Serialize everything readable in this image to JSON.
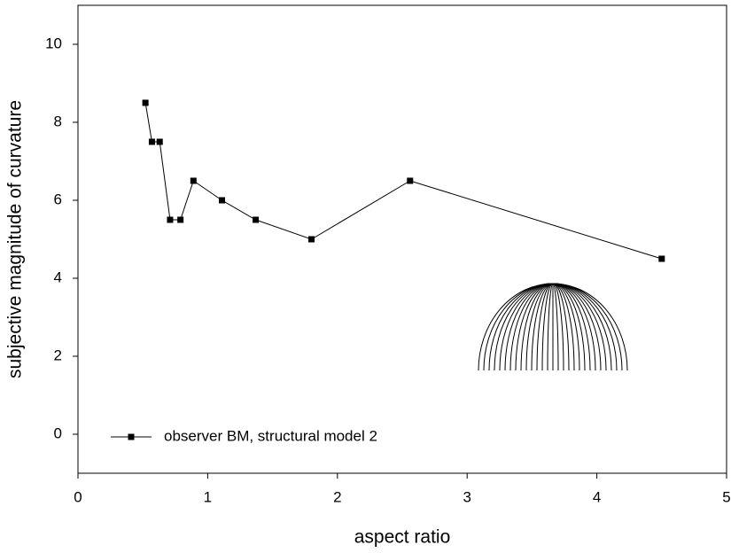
{
  "chart_data": {
    "type": "line",
    "xlabel": "aspect ratio",
    "ylabel": "subjective magnitude of curvature",
    "x": [
      0.52,
      0.57,
      0.63,
      0.71,
      0.79,
      0.89,
      1.11,
      1.37,
      1.8,
      2.56,
      4.5
    ],
    "series": [
      {
        "name": "observer BM, structural model 2",
        "color": "#000000",
        "values": [
          8.5,
          7.5,
          7.5,
          5.5,
          5.5,
          6.5,
          6.0,
          5.5,
          5.0,
          6.5,
          4.5
        ]
      }
    ],
    "xlim": [
      0,
      5
    ],
    "xticks": [
      0,
      1,
      2,
      3,
      4,
      5
    ],
    "ylim": [
      -1,
      11
    ],
    "yticks": [
      0,
      2,
      4,
      6,
      8,
      10
    ],
    "legend": "lower left",
    "grid": false
  }
}
